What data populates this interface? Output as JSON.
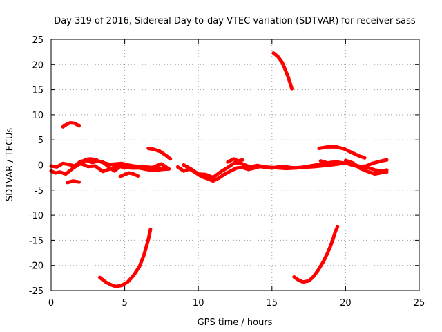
{
  "chart_data": {
    "type": "line",
    "title": "Day 319 of 2016, Sidereal Day-to-day VTEC variation (SDTVAR) for receiver sass",
    "xlabel": "GPS time / hours",
    "ylabel": "SDTVAR / TECUs",
    "xlim": [
      0,
      25
    ],
    "ylim": [
      -25,
      25
    ],
    "xticks": [
      0,
      5,
      10,
      15,
      20,
      25
    ],
    "yticks": [
      25,
      20,
      15,
      10,
      5,
      0,
      -5,
      -10,
      -15,
      -20,
      -25
    ],
    "grid": true,
    "legend": "none",
    "color": "#ff0000",
    "series": [
      {
        "name": "main-band-a",
        "points": [
          [
            0,
            -0.2
          ],
          [
            0.4,
            -0.4
          ],
          [
            0.8,
            0.3
          ],
          [
            1.2,
            0.1
          ],
          [
            1.6,
            -0.2
          ],
          [
            2.0,
            0.7
          ],
          [
            2.4,
            0.9
          ],
          [
            2.8,
            0.5
          ],
          [
            3.2,
            0.8
          ],
          [
            3.6,
            0.4
          ],
          [
            4.0,
            0.1
          ],
          [
            4.4,
            0.2
          ],
          [
            4.8,
            0.3
          ],
          [
            5.2,
            0
          ],
          [
            5.6,
            -0.2
          ],
          [
            6.0,
            -0.3
          ],
          [
            6.4,
            -0.4
          ],
          [
            6.8,
            -0.5
          ],
          [
            7.2,
            -0.6
          ],
          [
            7.6,
            -0.7
          ],
          [
            8.0,
            -0.8
          ]
        ]
      },
      {
        "name": "main-band-b",
        "points": [
          [
            0,
            -1.2
          ],
          [
            0.3,
            -1.6
          ],
          [
            0.6,
            -1.4
          ],
          [
            1.0,
            -1.8
          ],
          [
            1.5,
            -0.6
          ],
          [
            2.0,
            0.3
          ],
          [
            2.5,
            -0.3
          ],
          [
            3.0,
            -0.2
          ],
          [
            3.5,
            -1.3
          ],
          [
            4.0,
            -0.8
          ],
          [
            4.5,
            -0.2
          ],
          [
            5.0,
            -0.5
          ],
          [
            5.5,
            -0.6
          ],
          [
            6.0,
            -0.6
          ],
          [
            6.5,
            -0.9
          ],
          [
            7.0,
            -1.1
          ],
          [
            7.5,
            -0.9
          ],
          [
            8.0,
            -0.8
          ]
        ]
      },
      {
        "name": "main-band-c",
        "points": [
          [
            8.6,
            -0.4
          ],
          [
            9.0,
            -1.2
          ],
          [
            9.4,
            -0.8
          ],
          [
            9.8,
            -1.5
          ],
          [
            10.2,
            -2.3
          ],
          [
            10.6,
            -2.7
          ],
          [
            11.0,
            -3.2
          ],
          [
            11.4,
            -2.6
          ],
          [
            11.8,
            -1.8
          ],
          [
            12.2,
            -1.2
          ],
          [
            12.6,
            -0.6
          ],
          [
            13.0,
            -0.5
          ],
          [
            13.4,
            -0.9
          ],
          [
            13.8,
            -0.6
          ],
          [
            14.2,
            -0.3
          ],
          [
            14.6,
            -0.5
          ],
          [
            15.0,
            -0.6
          ],
          [
            15.4,
            -0.4
          ],
          [
            15.8,
            -0.3
          ],
          [
            16.2,
            -0.5
          ],
          [
            16.6,
            -0.6
          ],
          [
            17.0,
            -0.5
          ],
          [
            17.4,
            -0.3
          ],
          [
            17.8,
            -0.1
          ],
          [
            18.2,
            0.1
          ],
          [
            18.6,
            0.3
          ],
          [
            19.0,
            0.5
          ],
          [
            19.4,
            0.6
          ],
          [
            19.8,
            0.4
          ],
          [
            20.2,
            0.3
          ],
          [
            20.6,
            0
          ],
          [
            21.0,
            -0.3
          ],
          [
            21.4,
            -0.2
          ],
          [
            21.8,
            0.3
          ],
          [
            22.2,
            0.6
          ],
          [
            22.6,
            0.9
          ],
          [
            22.8,
            1.0
          ]
        ]
      },
      {
        "name": "main-band-d",
        "points": [
          [
            9.0,
            0
          ],
          [
            9.5,
            -0.8
          ],
          [
            10.0,
            -1.8
          ],
          [
            10.5,
            -1.9
          ],
          [
            11.0,
            -2.5
          ],
          [
            11.5,
            -1.4
          ],
          [
            12.0,
            -0.5
          ],
          [
            12.5,
            0.5
          ],
          [
            13.0,
            0.2
          ],
          [
            13.5,
            -0.4
          ],
          [
            14.0,
            -0.1
          ],
          [
            14.5,
            -0.4
          ],
          [
            15.0,
            -0.5
          ],
          [
            16.0,
            -0.7
          ],
          [
            17.0,
            -0.5
          ],
          [
            18.0,
            -0.3
          ],
          [
            19.0,
            0
          ],
          [
            20.0,
            0.4
          ],
          [
            20.5,
            -0.1
          ],
          [
            21.0,
            -0.4
          ],
          [
            21.5,
            -0.5
          ],
          [
            22.0,
            -1.0
          ],
          [
            22.5,
            -1.2
          ],
          [
            22.8,
            -1.0
          ]
        ]
      },
      {
        "name": "main-band-e",
        "points": [
          [
            20.0,
            0.9
          ],
          [
            20.5,
            0.4
          ],
          [
            21.0,
            -0.7
          ],
          [
            21.5,
            -1.3
          ],
          [
            22.0,
            -1.8
          ],
          [
            22.5,
            -1.5
          ],
          [
            22.8,
            -1.4
          ]
        ]
      },
      {
        "name": "short-arc-1",
        "points": [
          [
            0.8,
            7.6
          ],
          [
            1.0,
            8.0
          ],
          [
            1.3,
            8.4
          ],
          [
            1.6,
            8.3
          ],
          [
            1.9,
            7.8
          ]
        ]
      },
      {
        "name": "short-arc-2",
        "points": [
          [
            1.1,
            -3.5
          ],
          [
            1.5,
            -3.2
          ],
          [
            1.9,
            -3.4
          ]
        ]
      },
      {
        "name": "short-arc-3",
        "points": [
          [
            2.3,
            1.1
          ],
          [
            2.7,
            1.2
          ],
          [
            3.1,
            1.0
          ]
        ]
      },
      {
        "name": "short-arc-4",
        "points": [
          [
            3.5,
            0.6
          ],
          [
            4.0,
            -0.6
          ],
          [
            4.3,
            -1.2
          ],
          [
            4.6,
            -0.5
          ]
        ]
      },
      {
        "name": "short-arc-5",
        "points": [
          [
            4.7,
            -2.3
          ],
          [
            5.0,
            -1.9
          ],
          [
            5.3,
            -1.6
          ],
          [
            5.6,
            -1.8
          ],
          [
            5.9,
            -2.2
          ]
        ]
      },
      {
        "name": "short-arc-6",
        "points": [
          [
            6.6,
            3.3
          ],
          [
            7.0,
            3.1
          ],
          [
            7.4,
            2.7
          ],
          [
            7.8,
            1.9
          ],
          [
            8.1,
            1.2
          ]
        ]
      },
      {
        "name": "short-arc-7",
        "points": [
          [
            6.9,
            -0.5
          ],
          [
            7.3,
            0
          ],
          [
            7.5,
            0.2
          ],
          [
            7.9,
            -0.6
          ]
        ]
      },
      {
        "name": "short-arc-8",
        "points": [
          [
            12.0,
            0.6
          ],
          [
            12.4,
            1.2
          ],
          [
            12.7,
            0.8
          ],
          [
            13.0,
            1.0
          ]
        ]
      },
      {
        "name": "short-arc-9",
        "points": [
          [
            18.2,
            3.3
          ],
          [
            18.8,
            3.6
          ],
          [
            19.4,
            3.6
          ],
          [
            19.9,
            3.2
          ],
          [
            20.4,
            2.5
          ],
          [
            20.9,
            1.8
          ],
          [
            21.3,
            1.4
          ]
        ]
      },
      {
        "name": "short-arc-10",
        "points": [
          [
            18.3,
            0.8
          ],
          [
            18.8,
            0.4
          ],
          [
            19.3,
            0.2
          ]
        ]
      },
      {
        "name": "high-arc",
        "points": [
          [
            15.1,
            22.3
          ],
          [
            15.4,
            21.6
          ],
          [
            15.7,
            20.4
          ],
          [
            15.9,
            19.0
          ],
          [
            16.1,
            17.5
          ],
          [
            16.35,
            15.2
          ]
        ]
      },
      {
        "name": "dip-arc-1",
        "points": [
          [
            3.3,
            -22.4
          ],
          [
            3.7,
            -23.3
          ],
          [
            4.1,
            -23.9
          ],
          [
            4.4,
            -24.2
          ],
          [
            4.8,
            -24.0
          ],
          [
            5.2,
            -23.3
          ],
          [
            5.6,
            -22.0
          ],
          [
            6.0,
            -20.2
          ],
          [
            6.3,
            -18.0
          ],
          [
            6.6,
            -14.9
          ],
          [
            6.75,
            -12.8
          ]
        ]
      },
      {
        "name": "dip-arc-2",
        "points": [
          [
            16.5,
            -22.3
          ],
          [
            16.8,
            -22.9
          ],
          [
            17.1,
            -23.3
          ],
          [
            17.5,
            -23.1
          ],
          [
            17.8,
            -22.3
          ],
          [
            18.1,
            -21.1
          ],
          [
            18.5,
            -19.2
          ],
          [
            18.8,
            -17.4
          ],
          [
            19.1,
            -15.2
          ],
          [
            19.3,
            -13.3
          ],
          [
            19.45,
            -12.3
          ]
        ]
      }
    ]
  }
}
